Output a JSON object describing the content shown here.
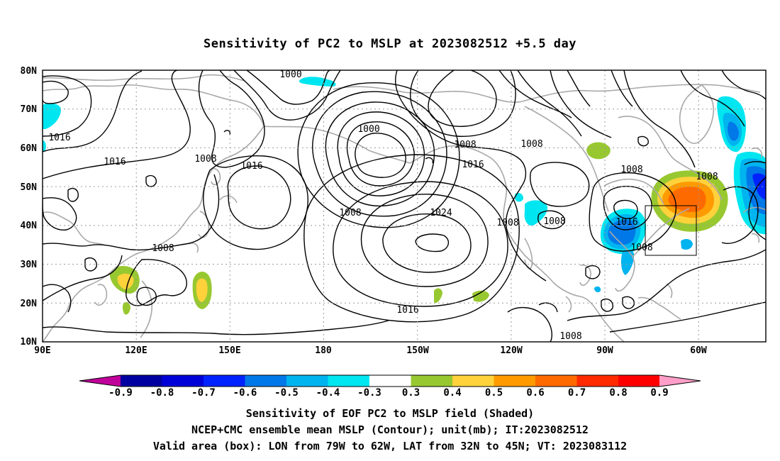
{
  "map": {
    "title": "Sensitivity of PC2 to MSLP at 2023082512 +5.5 day",
    "lon_labels": [
      "90E",
      "120E",
      "150E",
      "180",
      "150W",
      "120W",
      "90W",
      "60W"
    ],
    "lat_labels": [
      "80N",
      "70N",
      "60N",
      "50N",
      "40N",
      "30N",
      "20N",
      "10N"
    ],
    "extent": {
      "lon_west": 90,
      "lon_east": 297,
      "lat_south": 10,
      "lat_north": 80
    },
    "contour_labels": [
      {
        "text": "1000",
        "lon": 159.5,
        "lat": 79
      },
      {
        "text": "1016",
        "lon": 95.5,
        "lat": 63
      },
      {
        "text": "1016",
        "lon": 111.5,
        "lat": 56
      },
      {
        "text": "1008",
        "lon": 137.5,
        "lat": 57
      },
      {
        "text": "1016",
        "lon": 156.5,
        "lat": 55
      },
      {
        "text": "1000",
        "lon": 188,
        "lat": 62
      },
      {
        "text": "1008",
        "lon": 229.5,
        "lat": 59
      },
      {
        "text": "1008",
        "lon": 249,
        "lat": 59
      },
      {
        "text": "1016",
        "lon": 223,
        "lat": 54
      },
      {
        "text": "1008",
        "lon": 268.5,
        "lat": 53
      },
      {
        "text": "1008",
        "lon": 283,
        "lat": 51
      },
      {
        "text": "1024",
        "lon": 218,
        "lat": 44
      },
      {
        "text": "1008",
        "lon": 197,
        "lat": 44
      },
      {
        "text": "1008",
        "lon": 242,
        "lat": 40
      },
      {
        "text": "1008",
        "lon": 252.5,
        "lat": 40
      },
      {
        "text": "1016",
        "lon": 273.5,
        "lat": 40
      },
      {
        "text": "1008",
        "lon": 119.5,
        "lat": 34
      },
      {
        "text": "1008",
        "lon": 274,
        "lat": 34
      },
      {
        "text": "1016",
        "lon": 207,
        "lat": 18
      },
      {
        "text": "1008",
        "lon": 259,
        "lat": 11
      }
    ],
    "highs_lows": [
      {
        "kind": "high",
        "value": 1024,
        "lon": 213,
        "lat": 35
      },
      {
        "kind": "low",
        "value": 1000,
        "lon": 187,
        "lat": 57
      }
    ],
    "sensitivity_patches": [
      {
        "lon": 65,
        "lat": 47,
        "value": 0.6
      },
      {
        "lon": 82,
        "lat": 38,
        "value": -0.6
      },
      {
        "lon": 296,
        "lat": 50,
        "value": -0.6
      },
      {
        "lon": 293,
        "lat": 60,
        "value": -0.5
      },
      {
        "lon": 115,
        "lat": 23,
        "value": 0.5
      },
      {
        "lon": 131,
        "lat": 22,
        "value": 0.5
      },
      {
        "lon": 265,
        "lat": 59,
        "value": 0.3
      },
      {
        "lon": 161,
        "lat": 77,
        "value": -0.4
      },
      {
        "lon": 92,
        "lat": 72,
        "value": -0.4
      },
      {
        "lon": 243,
        "lat": 43,
        "value": -0.4
      },
      {
        "lon": 227,
        "lat": 21,
        "value": 0.3
      }
    ],
    "valid_box": {
      "lon_west": 281,
      "lon_east": 298,
      "lat_south": 32,
      "lat_north": 45
    }
  },
  "colorbar": {
    "colors": [
      "#c0009a",
      "#0000a0",
      "#0000d8",
      "#0022ff",
      "#0078e8",
      "#00b4f0",
      "#00e6f0",
      "#ffffff",
      "#98c830",
      "#ffd23c",
      "#ff9b00",
      "#ff6a00",
      "#ff2a00",
      "#ff0000",
      "#ff9ec8"
    ],
    "labels": [
      "-0.9",
      "-0.8",
      "-0.7",
      "-0.6",
      "-0.5",
      "-0.4",
      "-0.3",
      "0.3",
      "0.4",
      "0.5",
      "0.6",
      "0.7",
      "0.8",
      "0.9"
    ]
  },
  "footer": {
    "line1": "Sensitivity of EOF PC2 to MSLP field (Shaded)",
    "line2": "NCEP+CMC ensemble mean MSLP (Contour); unit(mb); IT:2023082512",
    "line3": "Valid area (box): LON from 79W to 62W, LAT from 32N to 45N; VT: 2023083112"
  }
}
